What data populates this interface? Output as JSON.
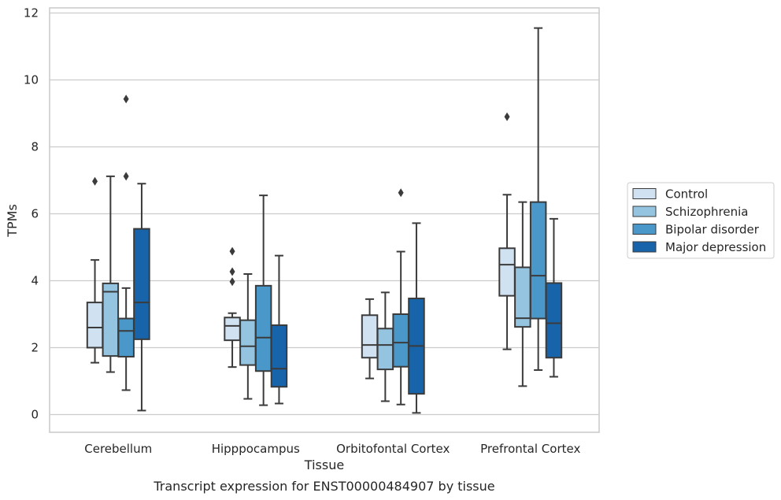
{
  "chart_data": {
    "type": "box",
    "title": "",
    "caption": "Transcript expression for ENST00000484907 by tissue",
    "xlabel": "Tissue",
    "ylabel": "TPMs",
    "ylim": [
      -0.5,
      12.2
    ],
    "yticks": [
      0,
      2,
      4,
      6,
      8,
      10,
      12
    ],
    "grid": "horizontal",
    "legend_position": "right-center",
    "categories": [
      "Cerebellum",
      "Hipppocampus",
      "Orbitofontal Cortex",
      "Prefrontal Cortex"
    ],
    "series": [
      {
        "name": "Control",
        "color": "#d0e1f2",
        "boxes": [
          {
            "whisker_low": 1.55,
            "q1": 2.0,
            "median": 2.6,
            "q3": 3.35,
            "whisker_high": 4.62,
            "outliers": [
              6.97
            ]
          },
          {
            "whisker_low": 1.42,
            "q1": 2.22,
            "median": 2.65,
            "q3": 2.9,
            "whisker_high": 3.03,
            "outliers": [
              3.97,
              4.27,
              4.88
            ]
          },
          {
            "whisker_low": 1.08,
            "q1": 1.7,
            "median": 2.08,
            "q3": 2.97,
            "whisker_high": 3.45,
            "outliers": []
          },
          {
            "whisker_low": 1.95,
            "q1": 3.55,
            "median": 4.48,
            "q3": 4.97,
            "whisker_high": 6.57,
            "outliers": [
              8.9
            ]
          }
        ]
      },
      {
        "name": "Schizophrenia",
        "color": "#94c4df",
        "boxes": [
          {
            "whisker_low": 1.27,
            "q1": 1.75,
            "median": 3.67,
            "q3": 3.92,
            "whisker_high": 7.12,
            "outliers": []
          },
          {
            "whisker_low": 0.47,
            "q1": 1.48,
            "median": 2.04,
            "q3": 2.82,
            "whisker_high": 4.2,
            "outliers": []
          },
          {
            "whisker_low": 0.4,
            "q1": 1.35,
            "median": 2.08,
            "q3": 2.57,
            "whisker_high": 3.65,
            "outliers": []
          },
          {
            "whisker_low": 0.85,
            "q1": 2.62,
            "median": 2.88,
            "q3": 4.4,
            "whisker_high": 6.35,
            "outliers": []
          }
        ]
      },
      {
        "name": "Bipolar disorder",
        "color": "#4a98c9",
        "boxes": [
          {
            "whisker_low": 0.73,
            "q1": 1.73,
            "median": 2.5,
            "q3": 2.87,
            "whisker_high": 3.78,
            "outliers": [
              7.12,
              9.43
            ]
          },
          {
            "whisker_low": 0.28,
            "q1": 1.3,
            "median": 2.3,
            "q3": 3.85,
            "whisker_high": 6.55,
            "outliers": []
          },
          {
            "whisker_low": 0.3,
            "q1": 1.43,
            "median": 2.15,
            "q3": 3.0,
            "whisker_high": 4.87,
            "outliers": [
              6.63
            ]
          },
          {
            "whisker_low": 1.33,
            "q1": 2.87,
            "median": 4.15,
            "q3": 6.35,
            "whisker_high": 11.55,
            "outliers": []
          }
        ]
      },
      {
        "name": "Major depression",
        "color": "#1764ab",
        "boxes": [
          {
            "whisker_low": 0.12,
            "q1": 2.25,
            "median": 3.35,
            "q3": 5.55,
            "whisker_high": 6.9,
            "outliers": []
          },
          {
            "whisker_low": 0.33,
            "q1": 0.83,
            "median": 1.37,
            "q3": 2.67,
            "whisker_high": 4.75,
            "outliers": []
          },
          {
            "whisker_low": 0.05,
            "q1": 0.62,
            "median": 2.05,
            "q3": 3.47,
            "whisker_high": 5.72,
            "outliers": []
          },
          {
            "whisker_low": 1.13,
            "q1": 1.7,
            "median": 2.73,
            "q3": 3.93,
            "whisker_high": 5.85,
            "outliers": []
          }
        ]
      }
    ]
  }
}
